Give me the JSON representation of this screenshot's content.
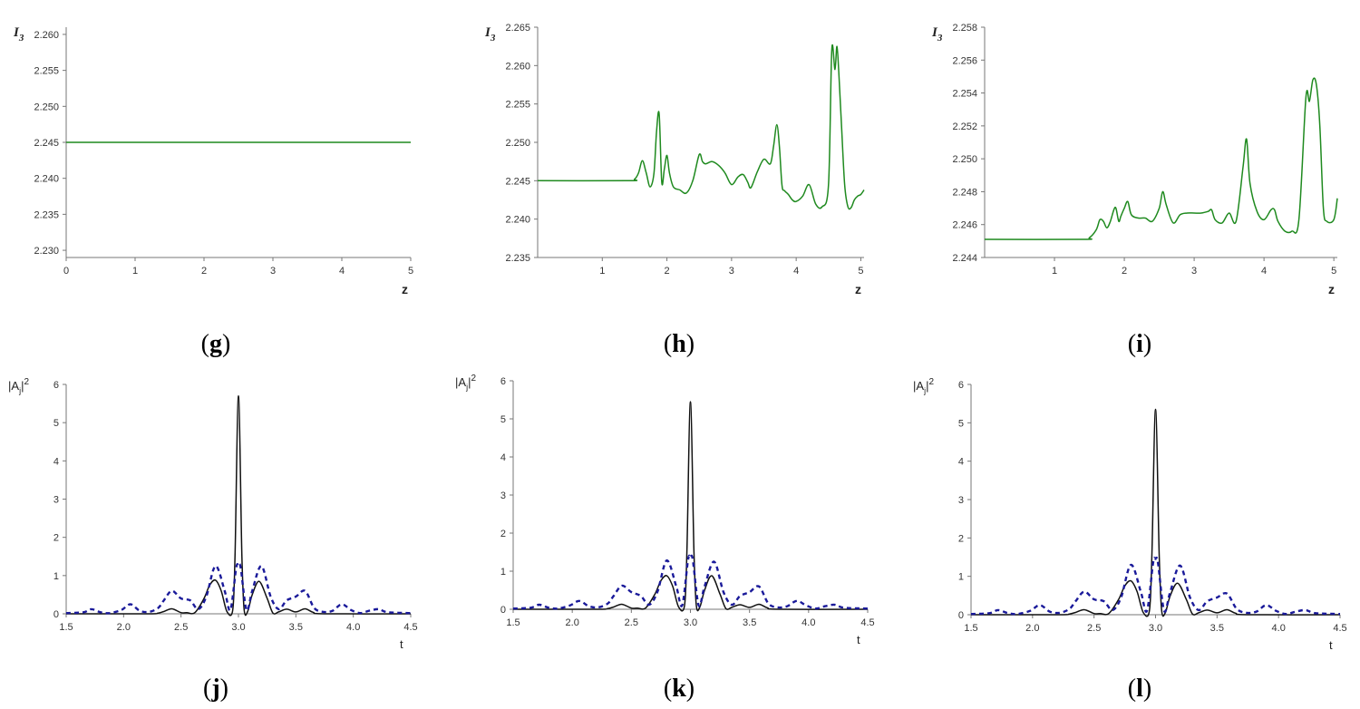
{
  "panel_labels": [
    "g",
    "h",
    "i",
    "j",
    "k",
    "l"
  ],
  "chart_data": [
    {
      "panel": "g",
      "type": "line",
      "xlabel": "z",
      "ylabel": "I3",
      "xlim": [
        0,
        5
      ],
      "ylim": [
        2.229,
        2.261
      ],
      "x_ticks": [
        0,
        1,
        2,
        3,
        4,
        5
      ],
      "x_tick_labels": [
        "0",
        "1",
        "2",
        "3",
        "4",
        "5"
      ],
      "y_ticks": [
        2.23,
        2.235,
        2.24,
        2.245,
        2.25,
        2.255,
        2.26
      ],
      "y_tick_labels": [
        "2.230",
        "2.235",
        "2.240",
        "2.245",
        "2.250",
        "2.255",
        "2.260"
      ],
      "color": "#1f8a1f",
      "series": [
        {
          "x": [
            0,
            5
          ],
          "y": [
            2.245,
            2.245
          ]
        }
      ]
    },
    {
      "panel": "h",
      "type": "line",
      "xlabel": "z",
      "ylabel": "I3",
      "xlim": [
        0,
        5.05
      ],
      "ylim": [
        2.235,
        2.265
      ],
      "x_ticks": [
        1,
        2,
        3,
        4,
        5
      ],
      "x_tick_labels": [
        "1",
        "2",
        "3",
        "4",
        "5"
      ],
      "y_ticks": [
        2.235,
        2.24,
        2.245,
        2.25,
        2.255,
        2.26,
        2.265
      ],
      "y_tick_labels": [
        "2.235",
        "2.240",
        "2.245",
        "2.250",
        "2.255",
        "2.260",
        "2.265"
      ],
      "color": "#1f8a1f",
      "series": [
        {
          "x": [
            0,
            1.4,
            1.5,
            1.56,
            1.62,
            1.68,
            1.74,
            1.8,
            1.84,
            1.88,
            1.92,
            1.96,
            2.0,
            2.04,
            2.1,
            2.2,
            2.3,
            2.4,
            2.5,
            2.55,
            2.6,
            2.7,
            2.8,
            2.9,
            3.0,
            3.1,
            3.18,
            3.25,
            3.3,
            3.4,
            3.5,
            3.6,
            3.65,
            3.7,
            3.74,
            3.78,
            3.82,
            3.88,
            3.94,
            4.0,
            4.1,
            4.2,
            4.3,
            4.4,
            4.5,
            4.55,
            4.6,
            4.63,
            4.66,
            4.7,
            4.75,
            4.8,
            4.85,
            4.9,
            4.95,
            5.0,
            5.05
          ],
          "y": [
            2.245,
            2.245,
            2.2452,
            2.246,
            2.2476,
            2.246,
            2.2442,
            2.246,
            2.2515,
            2.2537,
            2.2448,
            2.2465,
            2.2483,
            2.246,
            2.2442,
            2.2438,
            2.2434,
            2.245,
            2.2484,
            2.2475,
            2.2472,
            2.2475,
            2.247,
            2.246,
            2.2445,
            2.2455,
            2.2458,
            2.2448,
            2.2441,
            2.2462,
            2.2478,
            2.2472,
            2.2495,
            2.2523,
            2.2495,
            2.2444,
            2.2437,
            2.2432,
            2.2425,
            2.2423,
            2.243,
            2.2445,
            2.242,
            2.2416,
            2.2445,
            2.262,
            2.2595,
            2.2625,
            2.259,
            2.2525,
            2.2445,
            2.2416,
            2.2415,
            2.2425,
            2.243,
            2.2432,
            2.2438
          ]
        }
      ]
    },
    {
      "panel": "i",
      "type": "line",
      "xlabel": "z",
      "ylabel": "I3",
      "xlim": [
        0,
        5.05
      ],
      "ylim": [
        2.244,
        2.258
      ],
      "x_ticks": [
        1,
        2,
        3,
        4,
        5
      ],
      "x_tick_labels": [
        "1",
        "2",
        "3",
        "4",
        "5"
      ],
      "y_ticks": [
        2.244,
        2.246,
        2.248,
        2.25,
        2.252,
        2.254,
        2.256,
        2.258
      ],
      "y_tick_labels": [
        "2.244",
        "2.246",
        "2.248",
        "2.250",
        "2.252",
        "2.254",
        "2.256",
        "2.258"
      ],
      "color": "#1f8a1f",
      "series": [
        {
          "x": [
            0,
            1.4,
            1.5,
            1.6,
            1.65,
            1.7,
            1.75,
            1.8,
            1.85,
            1.88,
            1.92,
            1.95,
            2.0,
            2.05,
            2.1,
            2.2,
            2.3,
            2.4,
            2.5,
            2.55,
            2.6,
            2.7,
            2.8,
            2.9,
            3.0,
            3.1,
            3.2,
            3.25,
            3.3,
            3.4,
            3.5,
            3.6,
            3.7,
            3.75,
            3.8,
            3.9,
            4.0,
            4.1,
            4.15,
            4.2,
            4.3,
            4.4,
            4.5,
            4.6,
            4.65,
            4.7,
            4.75,
            4.8,
            4.85,
            4.9,
            5.0,
            5.05
          ],
          "y": [
            2.2451,
            2.2451,
            2.2452,
            2.2457,
            2.2463,
            2.2462,
            2.2458,
            2.2462,
            2.2469,
            2.247,
            2.2462,
            2.2465,
            2.247,
            2.2474,
            2.2466,
            2.2464,
            2.2464,
            2.2462,
            2.247,
            2.248,
            2.2472,
            2.2461,
            2.2466,
            2.2467,
            2.2467,
            2.2467,
            2.2468,
            2.2469,
            2.2463,
            2.2461,
            2.2467,
            2.2462,
            2.2495,
            2.2512,
            2.2485,
            2.2468,
            2.2463,
            2.2469,
            2.2469,
            2.2462,
            2.2456,
            2.2456,
            2.2463,
            2.2537,
            2.2535,
            2.2548,
            2.2545,
            2.252,
            2.247,
            2.2462,
            2.2463,
            2.2476
          ]
        }
      ]
    },
    {
      "panel": "j",
      "type": "line",
      "xlabel": "t",
      "ylabel": "|Aj|2",
      "xlim": [
        1.5,
        4.5
      ],
      "ylim": [
        0,
        6
      ],
      "x_ticks": [
        1.5,
        2.0,
        2.5,
        3.0,
        3.5,
        4.0,
        4.5
      ],
      "x_tick_labels": [
        "1.5",
        "2.0",
        "2.5",
        "3.0",
        "3.5",
        "4.0",
        "4.5"
      ],
      "y_ticks": [
        0,
        1,
        2,
        3,
        4,
        5,
        6
      ],
      "y_tick_labels": [
        "0",
        "1",
        "2",
        "3",
        "4",
        "5",
        "6"
      ],
      "series": [
        {
          "style": "solid",
          "color": "#111111",
          "x": [
            1.5,
            2.2,
            2.3,
            2.35,
            2.42,
            2.5,
            2.55,
            2.62,
            2.7,
            2.75,
            2.8,
            2.85,
            2.9,
            2.95,
            2.97,
            3.0,
            3.03,
            3.05,
            3.08,
            3.12,
            3.18,
            3.25,
            3.3,
            3.35,
            3.42,
            3.5,
            3.58,
            3.65,
            3.75,
            4.5
          ],
          "y": [
            0,
            0,
            0.02,
            0.06,
            0.13,
            0.03,
            0.03,
            0.03,
            0.4,
            0.75,
            0.88,
            0.6,
            0.06,
            0.1,
            1.5,
            5.7,
            1.5,
            0.1,
            0.06,
            0.5,
            0.85,
            0.4,
            0.02,
            0.05,
            0.12,
            0.05,
            0.13,
            0.04,
            0,
            0
          ]
        },
        {
          "style": "dashed",
          "color": "#1a1a9a",
          "x": [
            1.5,
            1.65,
            1.72,
            1.8,
            1.88,
            1.98,
            2.06,
            2.14,
            2.22,
            2.3,
            2.35,
            2.42,
            2.5,
            2.58,
            2.65,
            2.72,
            2.8,
            2.88,
            2.93,
            2.98,
            3.0,
            3.02,
            3.07,
            3.12,
            3.2,
            3.28,
            3.35,
            3.42,
            3.5,
            3.58,
            3.66,
            3.74,
            3.82,
            3.9,
            3.98,
            4.06,
            4.14,
            4.22,
            4.3,
            4.5
          ],
          "y": [
            0.02,
            0.04,
            0.12,
            0.04,
            0.02,
            0.1,
            0.25,
            0.08,
            0.05,
            0.15,
            0.35,
            0.6,
            0.4,
            0.35,
            0.12,
            0.45,
            1.25,
            0.6,
            0.1,
            1.2,
            1.25,
            1.2,
            0.1,
            0.6,
            1.25,
            0.45,
            0.12,
            0.35,
            0.45,
            0.6,
            0.15,
            0.05,
            0.08,
            0.25,
            0.1,
            0.02,
            0.08,
            0.12,
            0.04,
            0.02
          ]
        }
      ]
    },
    {
      "panel": "k",
      "type": "line",
      "xlabel": "t",
      "ylabel": "|Aj|2",
      "xlim": [
        1.5,
        4.5
      ],
      "ylim": [
        0,
        6
      ],
      "x_ticks": [
        1.5,
        2.0,
        2.5,
        3.0,
        3.5,
        4.0,
        4.5
      ],
      "x_tick_labels": [
        "1.5",
        "2.0",
        "2.5",
        "3.0",
        "3.5",
        "4.0",
        "4.5"
      ],
      "y_ticks": [
        0,
        1,
        2,
        3,
        4,
        5,
        6
      ],
      "y_tick_labels": [
        "0",
        "1",
        "2",
        "3",
        "4",
        "5",
        "6"
      ],
      "series": [
        {
          "style": "solid",
          "color": "#111111",
          "x": [
            1.5,
            2.2,
            2.3,
            2.35,
            2.42,
            2.5,
            2.55,
            2.62,
            2.7,
            2.75,
            2.8,
            2.85,
            2.9,
            2.95,
            2.97,
            3.0,
            3.03,
            3.05,
            3.08,
            3.12,
            3.18,
            3.25,
            3.3,
            3.35,
            3.42,
            3.5,
            3.58,
            3.65,
            3.75,
            4.5
          ],
          "y": [
            0,
            0,
            0.02,
            0.06,
            0.13,
            0.03,
            0.03,
            0.03,
            0.4,
            0.75,
            0.88,
            0.6,
            0.06,
            0.1,
            1.5,
            5.45,
            1.5,
            0.1,
            0.06,
            0.5,
            0.88,
            0.4,
            0.02,
            0.05,
            0.12,
            0.05,
            0.13,
            0.04,
            0,
            0
          ]
        },
        {
          "style": "dashed",
          "color": "#1a1a9a",
          "x": [
            1.5,
            1.65,
            1.72,
            1.8,
            1.88,
            1.98,
            2.06,
            2.14,
            2.22,
            2.3,
            2.35,
            2.42,
            2.5,
            2.58,
            2.65,
            2.72,
            2.8,
            2.88,
            2.93,
            2.98,
            3.0,
            3.02,
            3.07,
            3.12,
            3.2,
            3.28,
            3.35,
            3.42,
            3.5,
            3.58,
            3.66,
            3.74,
            3.82,
            3.9,
            3.98,
            4.06,
            4.14,
            4.22,
            4.3,
            4.5
          ],
          "y": [
            0.02,
            0.04,
            0.12,
            0.04,
            0.02,
            0.1,
            0.22,
            0.08,
            0.05,
            0.15,
            0.35,
            0.62,
            0.45,
            0.35,
            0.12,
            0.45,
            1.28,
            0.6,
            0.1,
            1.3,
            1.35,
            1.3,
            0.1,
            0.6,
            1.25,
            0.45,
            0.12,
            0.35,
            0.45,
            0.6,
            0.15,
            0.05,
            0.08,
            0.22,
            0.1,
            0.02,
            0.08,
            0.12,
            0.04,
            0.02
          ]
        }
      ]
    },
    {
      "panel": "l",
      "type": "line",
      "xlabel": "t",
      "ylabel": "|Aj|2",
      "xlim": [
        1.5,
        4.5
      ],
      "ylim": [
        0,
        6
      ],
      "x_ticks": [
        1.5,
        2.0,
        2.5,
        3.0,
        3.5,
        4.0,
        4.5
      ],
      "x_tick_labels": [
        "1.5",
        "2.0",
        "2.5",
        "3.0",
        "3.5",
        "4.0",
        "4.5"
      ],
      "y_ticks": [
        0,
        1,
        2,
        3,
        4,
        5,
        6
      ],
      "y_tick_labels": [
        "0",
        "1",
        "2",
        "3",
        "4",
        "5",
        "6"
      ],
      "series": [
        {
          "style": "solid",
          "color": "#111111",
          "x": [
            1.5,
            2.2,
            2.3,
            2.35,
            2.42,
            2.5,
            2.55,
            2.62,
            2.7,
            2.75,
            2.8,
            2.85,
            2.9,
            2.95,
            2.97,
            3.0,
            3.03,
            3.05,
            3.08,
            3.12,
            3.18,
            3.25,
            3.3,
            3.35,
            3.42,
            3.5,
            3.58,
            3.65,
            3.75,
            4.5
          ],
          "y": [
            0,
            0,
            0.02,
            0.06,
            0.13,
            0.03,
            0.03,
            0.03,
            0.4,
            0.75,
            0.88,
            0.6,
            0.06,
            0.1,
            1.5,
            5.35,
            1.5,
            0.1,
            0.06,
            0.5,
            0.82,
            0.4,
            0.02,
            0.05,
            0.12,
            0.05,
            0.13,
            0.04,
            0,
            0
          ]
        },
        {
          "style": "dashed",
          "color": "#1a1a9a",
          "x": [
            1.5,
            1.65,
            1.72,
            1.8,
            1.88,
            1.98,
            2.06,
            2.14,
            2.22,
            2.3,
            2.35,
            2.42,
            2.5,
            2.58,
            2.65,
            2.72,
            2.8,
            2.88,
            2.93,
            2.98,
            3.0,
            3.02,
            3.07,
            3.12,
            3.2,
            3.28,
            3.35,
            3.42,
            3.5,
            3.58,
            3.66,
            3.74,
            3.82,
            3.9,
            3.98,
            4.06,
            4.14,
            4.22,
            4.3,
            4.5
          ],
          "y": [
            0.02,
            0.04,
            0.12,
            0.04,
            0.02,
            0.1,
            0.25,
            0.08,
            0.05,
            0.15,
            0.35,
            0.6,
            0.4,
            0.35,
            0.12,
            0.45,
            1.3,
            0.6,
            0.1,
            1.35,
            1.45,
            1.35,
            0.1,
            0.6,
            1.28,
            0.45,
            0.12,
            0.35,
            0.45,
            0.55,
            0.15,
            0.05,
            0.08,
            0.25,
            0.1,
            0.02,
            0.08,
            0.12,
            0.04,
            0.02
          ]
        }
      ]
    }
  ]
}
